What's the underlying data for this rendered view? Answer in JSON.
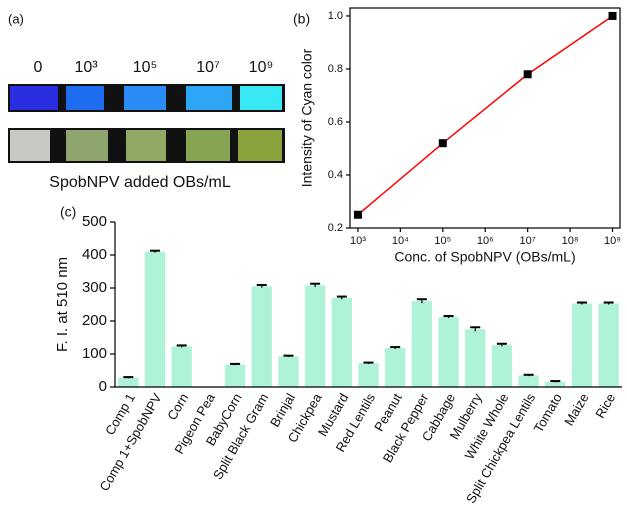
{
  "panel_a": {
    "label": "(a)",
    "concentrations": [
      "0",
      "10³",
      "10⁵",
      "10⁷",
      "10⁹"
    ],
    "caption": "SpobNPV added OBs/mL"
  },
  "chart_data": [
    {
      "type": "line",
      "panel_label": "(b)",
      "x_label": "Conc. of SpobNPV (OBs/mL)",
      "y_label": "Intensity of Cyan color",
      "x": [
        1000,
        100000,
        10000000,
        1000000000
      ],
      "values": [
        0.25,
        0.52,
        0.78,
        1.0
      ],
      "color": "#ff0000",
      "marker_color": "#000000",
      "log_x": true,
      "xlim": [
        650,
        1500000000
      ],
      "xticks": [
        {
          "value": 1000,
          "label": "10³"
        },
        {
          "value": 10000,
          "label": "10⁴"
        },
        {
          "value": 100000,
          "label": "10⁵"
        },
        {
          "value": 1000000,
          "label": "10⁶"
        },
        {
          "value": 10000000,
          "label": "10⁷"
        },
        {
          "value": 100000000,
          "label": "10⁸"
        },
        {
          "value": 1000000000,
          "label": "10⁹"
        }
      ],
      "ylim": [
        0.2,
        1.03
      ],
      "yticks": [
        0.2,
        0.4,
        0.6,
        0.8,
        {
          "value": 1,
          "label": "1.0"
        }
      ]
    },
    {
      "type": "bar",
      "panel_label": "(c)",
      "y_label": "F. I. at 510 nm",
      "categories": [
        "Comp 1",
        "Comp 1+SpobNPV",
        "Corn",
        "Pigeon Pea",
        "BabyCorn",
        "Split Black Gram",
        "Brinjal",
        "Chickpea",
        "Mustard",
        "Red Lentils",
        "Peanut",
        "Black Pepper",
        "Cabbage",
        "Mulberry",
        "White Whole",
        "Split Chickpea Lentils",
        "Tomato",
        "Maize",
        "Rice"
      ],
      "values": [
        28,
        410,
        123,
        0,
        68,
        305,
        93,
        308,
        270,
        72,
        118,
        260,
        212,
        175,
        127,
        35,
        16,
        253,
        253
      ],
      "errors": [
        2,
        3,
        3,
        0,
        2,
        4,
        2,
        5,
        4,
        2,
        3,
        6,
        3,
        6,
        4,
        2,
        2,
        3,
        3
      ],
      "color": "#aef2d8",
      "error_color": "#000000",
      "ylim": [
        0,
        500
      ],
      "yticks": [
        0,
        100,
        200,
        300,
        400,
        500
      ]
    }
  ]
}
